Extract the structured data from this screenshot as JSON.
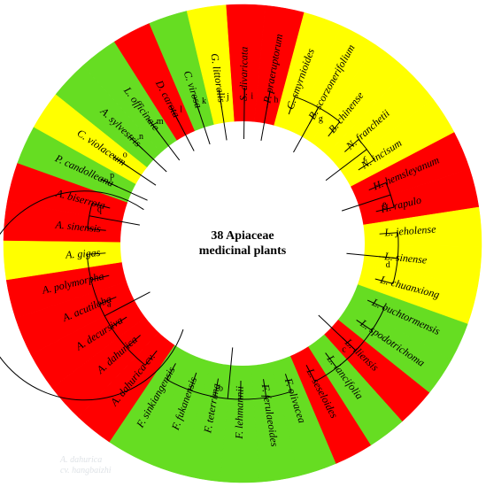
{
  "title_lines": [
    "38 Apiaceae",
    "medicinal plants"
  ],
  "watermark": [
    "A. dahurica",
    "cv. hangbaizhi"
  ],
  "colors": {
    "red": "#ff0000",
    "yellow": "#ffff00",
    "green": "#66dd22",
    "line": "#000000",
    "ring_bg": "#ffffff"
  },
  "leaves": [
    {
      "label": "S. divaricata",
      "color": "red"
    },
    {
      "label": "P. praeruptorum",
      "color": "red"
    },
    {
      "label": "C. smyrnioides",
      "color": "yellow"
    },
    {
      "label": "B. scorzonerifolium",
      "color": "yellow"
    },
    {
      "label": "B. chinense",
      "color": "yellow"
    },
    {
      "label": "N. franchetii",
      "color": "yellow"
    },
    {
      "label": "N. incisum",
      "color": "yellow"
    },
    {
      "label": "H. hemsleyanum",
      "color": "red"
    },
    {
      "label": "H. rapulo",
      "color": "red"
    },
    {
      "label": "L. jeholense",
      "color": "yellow"
    },
    {
      "label": "L. sinense",
      "color": "yellow"
    },
    {
      "label": "L. chuanxiong",
      "color": "yellow"
    },
    {
      "label": "L. buchtormensis",
      "color": "green"
    },
    {
      "label": "L. spodotrichoma",
      "color": "green"
    },
    {
      "label": "L. iliensis",
      "color": "red"
    },
    {
      "label": "L. lancifolia",
      "color": "green"
    },
    {
      "label": "L. seseloides",
      "color": "red"
    },
    {
      "label": "F. olivacea",
      "color": "green"
    },
    {
      "label": "F. ferulaeoides",
      "color": "green"
    },
    {
      "label": "F. lehmannii",
      "color": "green"
    },
    {
      "label": "F. teterrima",
      "color": "green"
    },
    {
      "label": "F. fukanensis",
      "color": "green"
    },
    {
      "label": "F. sinkiangensis",
      "color": "green"
    },
    {
      "label": "A. dahurica cv.",
      "color": "red"
    },
    {
      "label": "A. dahurica",
      "color": "red"
    },
    {
      "label": "A. decursiva",
      "color": "red"
    },
    {
      "label": "A. acutiloba",
      "color": "red"
    },
    {
      "label": "A. polymorpha",
      "color": "red"
    },
    {
      "label": "A. gigas",
      "color": "yellow"
    },
    {
      "label": "A. sinensis",
      "color": "red"
    },
    {
      "label": "A. biserrota",
      "color": "red"
    },
    {
      "label": "P. candolleana",
      "color": "green"
    },
    {
      "label": "C. violaceum",
      "color": "yellow"
    },
    {
      "label": "A. sylvestris",
      "color": "green"
    },
    {
      "label": "L. officinale",
      "color": "green"
    },
    {
      "label": "D. carota",
      "color": "red"
    },
    {
      "label": "C. virosa",
      "color": "green"
    },
    {
      "label": "G. littoralis",
      "color": "yellow"
    }
  ],
  "clades": [
    {
      "name": "a",
      "first": 23,
      "last": 28
    },
    {
      "name": "b",
      "first": 17,
      "last": 22
    },
    {
      "name": "c",
      "first": 12,
      "last": 16
    },
    {
      "name": "d",
      "first": 9,
      "last": 11
    },
    {
      "name": "e",
      "first": 7,
      "last": 8
    },
    {
      "name": "f",
      "first": 5,
      "last": 6
    },
    {
      "name": "g",
      "first": 2,
      "last": 4
    },
    {
      "name": "h",
      "first": 1,
      "last": 1
    },
    {
      "name": "i",
      "first": 0,
      "last": 0
    },
    {
      "name": "j",
      "first": 37,
      "last": 37
    },
    {
      "name": "k",
      "first": 36,
      "last": 36
    },
    {
      "name": "l",
      "first": 35,
      "last": 35
    },
    {
      "name": "m",
      "first": 34,
      "last": 34
    },
    {
      "name": "n",
      "first": 33,
      "last": 33
    },
    {
      "name": "o",
      "first": 32,
      "last": 32
    },
    {
      "name": "p",
      "first": 31,
      "last": 31
    },
    {
      "name": "q",
      "first": 29,
      "last": 30
    }
  ]
}
